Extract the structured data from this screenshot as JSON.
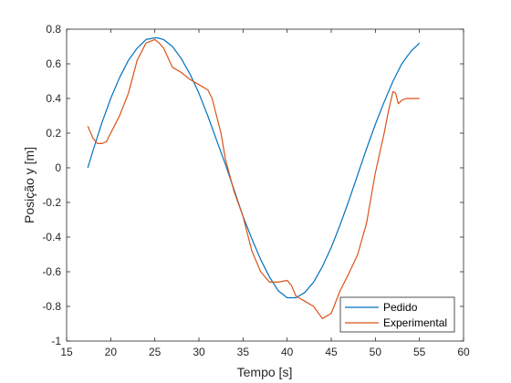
{
  "chart_data": {
    "type": "line",
    "xlabel": "Tempo [s]",
    "ylabel": "Posição y [m]",
    "xlim": [
      15,
      60
    ],
    "ylim": [
      -1,
      0.8
    ],
    "xticks": [
      15,
      20,
      25,
      30,
      35,
      40,
      45,
      50,
      55,
      60
    ],
    "yticks": [
      -1,
      -0.8,
      -0.6,
      -0.4,
      -0.2,
      0,
      0.2,
      0.4,
      0.6,
      0.8
    ],
    "grid": false,
    "legend_position": "bottom-right",
    "series": [
      {
        "name": "Pedido",
        "color": "#0072BD",
        "x": [
          17.4,
          18,
          19,
          20,
          21,
          22,
          23,
          24,
          25,
          25.3,
          26,
          27,
          28,
          29,
          30,
          31,
          32,
          33,
          34,
          35,
          36,
          37,
          38,
          39,
          40,
          41,
          42,
          43,
          44,
          45,
          46,
          47,
          48,
          49,
          50,
          51,
          52,
          53,
          54,
          55
        ],
        "y": [
          0.0,
          0.1,
          0.26,
          0.4,
          0.52,
          0.62,
          0.69,
          0.74,
          0.75,
          0.75,
          0.74,
          0.7,
          0.63,
          0.54,
          0.43,
          0.3,
          0.16,
          0.02,
          -0.13,
          -0.28,
          -0.41,
          -0.53,
          -0.63,
          -0.71,
          -0.75,
          -0.75,
          -0.72,
          -0.66,
          -0.57,
          -0.46,
          -0.33,
          -0.19,
          -0.04,
          0.11,
          0.25,
          0.38,
          0.5,
          0.6,
          0.67,
          0.72
        ]
      },
      {
        "name": "Experimental",
        "color": "#D95319",
        "x": [
          17.4,
          18,
          18.5,
          19,
          19.5,
          20,
          21,
          22,
          23,
          24,
          25,
          25.5,
          26,
          27,
          28,
          29,
          30,
          31,
          31.5,
          32,
          32.5,
          33,
          34,
          35,
          36,
          37,
          38,
          39,
          40,
          40.5,
          41,
          42,
          43,
          44,
          45,
          46,
          47,
          48,
          49,
          50,
          51,
          51.5,
          52,
          52.3,
          52.6,
          53,
          53.5,
          54,
          55
        ],
        "y": [
          0.24,
          0.17,
          0.14,
          0.14,
          0.15,
          0.2,
          0.3,
          0.43,
          0.62,
          0.72,
          0.74,
          0.72,
          0.69,
          0.58,
          0.55,
          0.51,
          0.48,
          0.45,
          0.4,
          0.3,
          0.2,
          0.05,
          -0.14,
          -0.28,
          -0.48,
          -0.6,
          -0.66,
          -0.66,
          -0.65,
          -0.68,
          -0.74,
          -0.77,
          -0.8,
          -0.87,
          -0.84,
          -0.71,
          -0.61,
          -0.5,
          -0.32,
          -0.03,
          0.2,
          0.33,
          0.44,
          0.43,
          0.37,
          0.39,
          0.4,
          0.4,
          0.4
        ]
      }
    ]
  }
}
